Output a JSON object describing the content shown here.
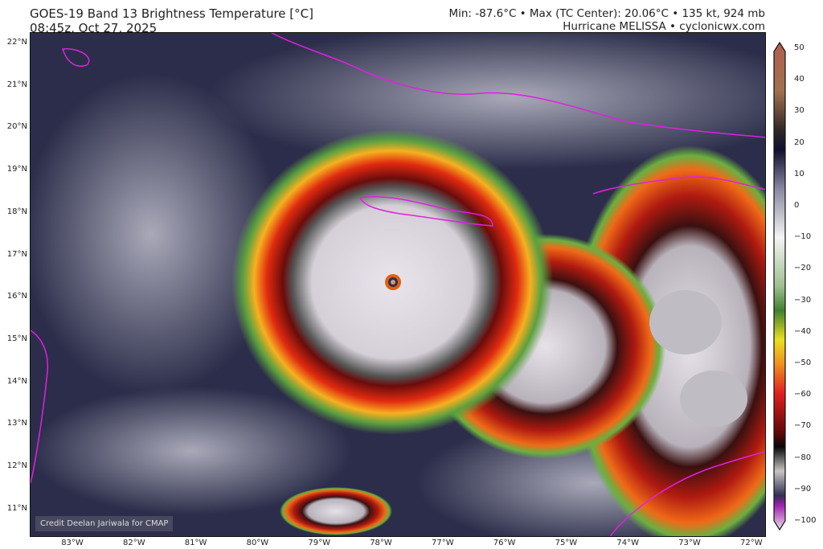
{
  "header": {
    "title": "GOES-19 Band 13 Brightness Temperature [°C]",
    "time": "08:45z, Oct 27, 2025",
    "stats": "Min: -87.6°C • Max (TC Center): 20.06°C • 135 kt, 924 mb",
    "storm": "Hurricane MELISSA • cyclonicwx.com"
  },
  "map": {
    "credit": "Credit Deelan Jariwala for CMAP",
    "lat_labels": [
      "22°N",
      "21°N",
      "20°N",
      "19°N",
      "18°N",
      "17°N",
      "16°N",
      "15°N",
      "14°N",
      "13°N",
      "12°N",
      "11°N"
    ],
    "lon_labels": [
      "83°W",
      "82°W",
      "81°W",
      "80°W",
      "79°W",
      "78°W",
      "77°W",
      "76°W",
      "75°W",
      "74°W",
      "73°W",
      "72°W"
    ],
    "coastline_color": "#e020e0"
  },
  "colorbar": {
    "ticks": [
      "50",
      "40",
      "30",
      "20",
      "10",
      "0",
      "−10",
      "−20",
      "−30",
      "−40",
      "−50",
      "−60",
      "−70",
      "−80",
      "−90",
      "−100"
    ],
    "range": [
      -100,
      50
    ],
    "unit": "°C"
  }
}
